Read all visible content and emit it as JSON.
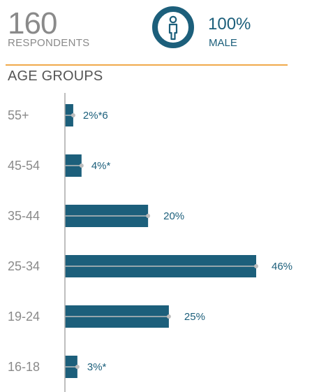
{
  "header": {
    "respondent_count": "160",
    "respondent_label": "RESPONDENTS",
    "gender_percent": "100%",
    "gender_label": "MALE"
  },
  "section_title": "AGE GROUPS",
  "colors": {
    "bar": "#1c5f7b",
    "accent_line": "#f0a94b",
    "muted_text": "#8a8a8a",
    "marker": "#bdbdbd"
  },
  "icons": {
    "gender": "person-icon"
  },
  "chart_data": {
    "type": "bar",
    "orientation": "horizontal",
    "title": "AGE GROUPS",
    "categories": [
      "55+",
      "45-54",
      "35-44",
      "25-34",
      "19-24",
      "16-18"
    ],
    "values": [
      2,
      4,
      20,
      46,
      25,
      3
    ],
    "value_labels": [
      "2%*6",
      "4%*",
      "20%",
      "46%",
      "25%",
      "3%*"
    ],
    "unit": "%",
    "xlim": [
      0,
      46
    ],
    "grid": false,
    "legend": "none"
  }
}
